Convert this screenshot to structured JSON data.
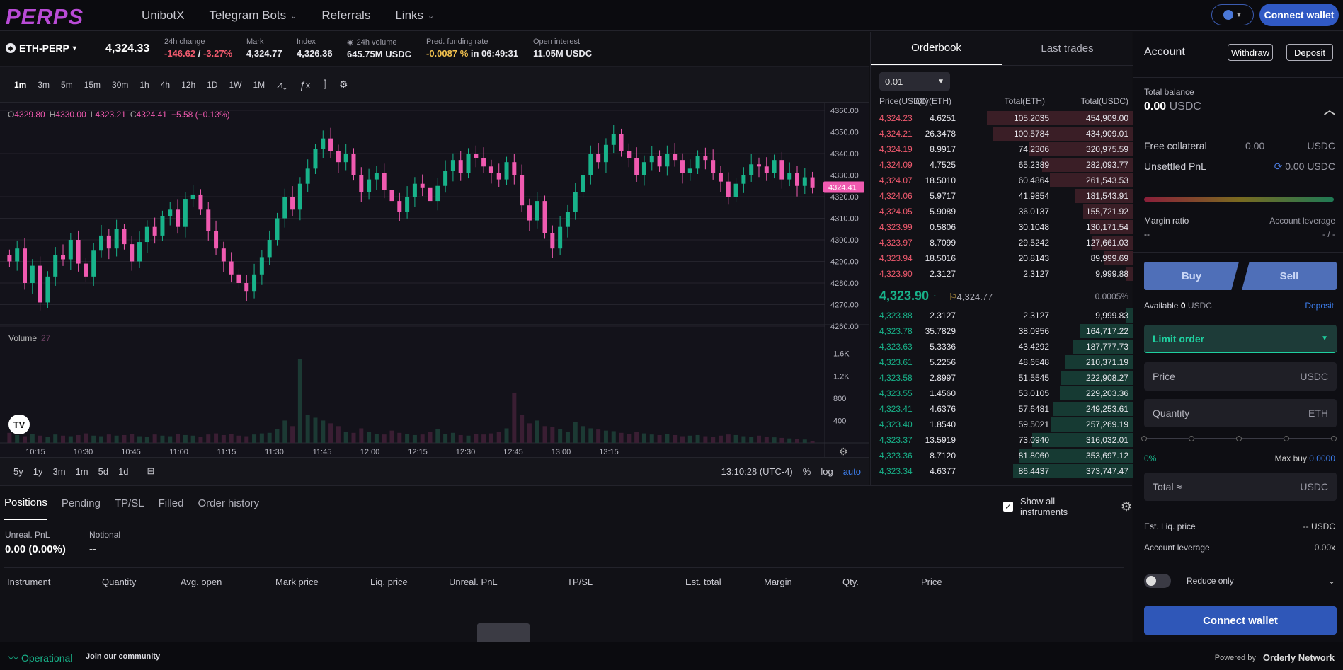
{
  "nav": {
    "logo": "PERPS",
    "items": [
      {
        "label": "UnibotX",
        "dropdown": false
      },
      {
        "label": "Telegram Bots",
        "dropdown": true
      },
      {
        "label": "Referrals",
        "dropdown": false
      },
      {
        "label": "Links",
        "dropdown": true
      }
    ],
    "connect_label": "Connect wallet"
  },
  "ticker": {
    "symbol": "ETH-PERP",
    "last_price": "4,324.33",
    "change_label": "24h change",
    "change_abs": "-146.62",
    "change_sep": " / ",
    "change_pct": "-3.27%",
    "mark_label": "Mark",
    "mark": "4,324.77",
    "index_label": "Index",
    "index": "4,326.36",
    "volume_label": "24h volume",
    "volume": "645.75M USDC",
    "funding_label": "Pred. funding rate",
    "funding_rate": "-0.0087 %",
    "funding_in": " in 06:49:31",
    "oi_label": "Open interest",
    "open_interest": "11.05M USDC"
  },
  "chart_toolbar": {
    "timeframes": [
      "1m",
      "3m",
      "5m",
      "15m",
      "30m",
      "1h",
      "4h",
      "12h",
      "1D",
      "1W",
      "1M"
    ],
    "active": "1m"
  },
  "chart_data": {
    "type": "candlestick",
    "ohlc_legend": {
      "o": "4329.80",
      "h": "4330.00",
      "l": "4323.21",
      "c": "4324.41",
      "chg": "−5.58 (−0.13%)"
    },
    "price_axis": [
      "4360.00",
      "4350.00",
      "4340.00",
      "4330.00",
      "4320.00",
      "4310.00",
      "4300.00",
      "4290.00",
      "4280.00",
      "4270.00",
      "4260.00"
    ],
    "ylim": [
      4260,
      4360
    ],
    "last_price_tag": "4324.41",
    "volume_label": "Volume",
    "volume_value": "27",
    "volume_axis": [
      "1.6K",
      "1.2K",
      "800",
      "400"
    ],
    "time_axis": [
      "10:15",
      "10:30",
      "10:45",
      "11:00",
      "11:15",
      "11:30",
      "11:45",
      "12:00",
      "12:15",
      "12:30",
      "12:45",
      "13:00",
      "13:15"
    ],
    "closes": [
      4290,
      4296,
      4280,
      4288,
      4271,
      4283,
      4293,
      4291,
      4300,
      4289,
      4283,
      4295,
      4302,
      4296,
      4305,
      4298,
      4290,
      4299,
      4306,
      4302,
      4311,
      4314,
      4306,
      4319,
      4321,
      4314,
      4304,
      4296,
      4290,
      4284,
      4280,
      4276,
      4284,
      4292,
      4300,
      4310,
      4320,
      4314,
      4326,
      4333,
      4342,
      4347,
      4341,
      4336,
      4340,
      4330,
      4322,
      4328,
      4331,
      4323,
      4318,
      4313,
      4320,
      4326,
      4324,
      4318,
      4325,
      4332,
      4337,
      4331,
      4340,
      4338,
      4334,
      4331,
      4328,
      4336,
      4330,
      4316,
      4309,
      4318,
      4303,
      4296,
      4306,
      4313,
      4322,
      4330,
      4340,
      4336,
      4344,
      4349,
      4341,
      4338,
      4330,
      4336,
      4339,
      4334,
      4340,
      4337,
      4331,
      4333,
      4339,
      4337,
      4331,
      4327,
      4320,
      4326,
      4330,
      4335,
      4334,
      4331,
      4337,
      4328,
      4331,
      4325,
      4329,
      4324
    ],
    "volumes": [
      180,
      140,
      120,
      160,
      130,
      110,
      150,
      130,
      120,
      140,
      170,
      130,
      120,
      150,
      130,
      140,
      160,
      120,
      110,
      150,
      130,
      120,
      160,
      140,
      130,
      110,
      150,
      170,
      140,
      160,
      130,
      120,
      150,
      170,
      180,
      250,
      400,
      300,
      1500,
      500,
      450,
      400,
      350,
      300,
      200,
      180,
      260,
      200,
      160,
      150,
      220,
      180,
      160,
      140,
      150,
      200,
      250,
      160,
      180,
      140,
      130,
      160,
      150,
      170,
      200,
      260,
      900,
      500,
      350,
      400,
      300,
      280,
      250,
      200,
      380,
      300,
      260,
      240,
      220,
      210,
      180,
      160,
      200,
      170,
      150,
      140,
      160,
      140,
      120,
      130,
      140,
      120,
      110,
      130,
      150,
      140,
      120,
      110,
      130,
      110,
      100,
      90,
      80,
      70,
      60,
      27
    ]
  },
  "chart_footer": {
    "ranges": [
      "5y",
      "1y",
      "3m",
      "1m",
      "5d",
      "1d"
    ],
    "time": "13:10:28 (UTC-4)",
    "pct": "%",
    "log": "log",
    "auto": "auto"
  },
  "orderbook": {
    "tabs": [
      "Orderbook",
      "Last trades"
    ],
    "depth": "0.01",
    "headers": [
      "Price(USDC)",
      "Qty(ETH)",
      "Total(ETH)",
      "Total(USDC)"
    ],
    "asks": [
      {
        "price": "4,324.23",
        "qty": "4.6251",
        "total": "105.2035",
        "usdc": "454,909.00",
        "depth": 1.0
      },
      {
        "price": "4,324.21",
        "qty": "26.3478",
        "total": "100.5784",
        "usdc": "434,909.01",
        "depth": 0.96
      },
      {
        "price": "4,324.19",
        "qty": "8.9917",
        "total": "74.2306",
        "usdc": "320,975.59",
        "depth": 0.71
      },
      {
        "price": "4,324.09",
        "qty": "4.7525",
        "total": "65.2389",
        "usdc": "282,093.77",
        "depth": 0.62
      },
      {
        "price": "4,324.07",
        "qty": "18.5010",
        "total": "60.4864",
        "usdc": "261,543.53",
        "depth": 0.57
      },
      {
        "price": "4,324.06",
        "qty": "5.9717",
        "total": "41.9854",
        "usdc": "181,543.91",
        "depth": 0.4
      },
      {
        "price": "4,324.05",
        "qty": "5.9089",
        "total": "36.0137",
        "usdc": "155,721.92",
        "depth": 0.34
      },
      {
        "price": "4,323.99",
        "qty": "0.5806",
        "total": "30.1048",
        "usdc": "130,171.54",
        "depth": 0.29
      },
      {
        "price": "4,323.97",
        "qty": "8.7099",
        "total": "29.5242",
        "usdc": "127,661.03",
        "depth": 0.28
      },
      {
        "price": "4,323.94",
        "qty": "18.5016",
        "total": "20.8143",
        "usdc": "89,999.69",
        "depth": 0.2
      },
      {
        "price": "4,323.90",
        "qty": "2.3127",
        "total": "2.3127",
        "usdc": "9,999.88",
        "depth": 0.05
      }
    ],
    "mid_price": "4,323.90",
    "mid_mark": "4,324.77",
    "mid_pct": "0.0005%",
    "bids": [
      {
        "price": "4,323.88",
        "qty": "2.3127",
        "total": "2.3127",
        "usdc": "9,999.83",
        "depth": 0.05
      },
      {
        "price": "4,323.78",
        "qty": "35.7829",
        "total": "38.0956",
        "usdc": "164,717.22",
        "depth": 0.36
      },
      {
        "price": "4,323.63",
        "qty": "5.3336",
        "total": "43.4292",
        "usdc": "187,777.73",
        "depth": 0.41
      },
      {
        "price": "4,323.61",
        "qty": "5.2256",
        "total": "48.6548",
        "usdc": "210,371.19",
        "depth": 0.46
      },
      {
        "price": "4,323.58",
        "qty": "2.8997",
        "total": "51.5545",
        "usdc": "222,908.27",
        "depth": 0.49
      },
      {
        "price": "4,323.55",
        "qty": "1.4560",
        "total": "53.0105",
        "usdc": "229,203.36",
        "depth": 0.5
      },
      {
        "price": "4,323.41",
        "qty": "4.6376",
        "total": "57.6481",
        "usdc": "249,253.61",
        "depth": 0.55
      },
      {
        "price": "4,323.40",
        "qty": "1.8540",
        "total": "59.5021",
        "usdc": "257,269.19",
        "depth": 0.56
      },
      {
        "price": "4,323.37",
        "qty": "13.5919",
        "total": "73.0940",
        "usdc": "316,032.01",
        "depth": 0.69
      },
      {
        "price": "4,323.36",
        "qty": "8.7120",
        "total": "81.8060",
        "usdc": "353,697.12",
        "depth": 0.78
      },
      {
        "price": "4,323.34",
        "qty": "4.6377",
        "total": "86.4437",
        "usdc": "373,747.47",
        "depth": 0.82
      }
    ]
  },
  "account": {
    "title": "Account",
    "withdraw": "Withdraw",
    "deposit": "Deposit",
    "total_balance_label": "Total balance",
    "total_balance": "0.00",
    "total_balance_unit": "USDC",
    "free_collateral_label": "Free collateral",
    "free_collateral": "0.00",
    "free_collateral_unit": "USDC",
    "unsettled_label": "Unsettled PnL",
    "unsettled": "0.00 USDC",
    "margin_ratio_label": "Margin ratio",
    "margin_ratio": "--",
    "acct_leverage_label": "Account leverage",
    "acct_leverage": "- / -",
    "buy": "Buy",
    "sell": "Sell",
    "available_label": "Available",
    "available": "0",
    "available_unit": "USDC",
    "deposit_link": "Deposit",
    "order_type": "Limit order",
    "price_label": "Price",
    "price_unit": "USDC",
    "qty_label": "Quantity",
    "qty_unit": "ETH",
    "slider_min": "0%",
    "max_buy_label": "Max buy",
    "max_buy": "0.0000",
    "total_label": "Total ≈",
    "total_unit": "USDC",
    "est_liq_label": "Est. Liq. price",
    "est_liq": "-- USDC",
    "leverage_label": "Account leverage",
    "leverage": "0.00x",
    "reduce_only": "Reduce only",
    "connect": "Connect wallet"
  },
  "positions": {
    "tabs": [
      "Positions",
      "Pending",
      "TP/SL",
      "Filled",
      "Order history"
    ],
    "show_all": "Show all instruments",
    "unreal_label": "Unreal. PnL",
    "unreal": "0.00 (0.00%)",
    "notional_label": "Notional",
    "notional": "--",
    "columns": [
      "Instrument",
      "Quantity",
      "Avg. open",
      "Mark price",
      "Liq. price",
      "Unreal. PnL",
      "TP/SL",
      "Est. total",
      "Margin",
      "Qty.",
      "Price"
    ]
  },
  "footer": {
    "status": "Operational",
    "join": "Join our community",
    "powered": "Powered by",
    "brand": "Orderly Network"
  },
  "colors": {
    "up": "#18b38a",
    "down": "#f05ab0",
    "accent": "#3059c4"
  }
}
